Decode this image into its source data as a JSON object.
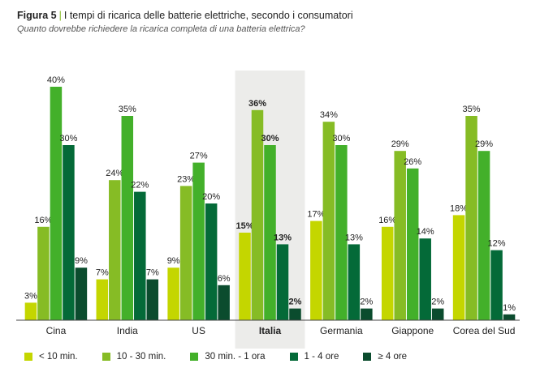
{
  "header": {
    "figure_label": "Figura 5",
    "title": "I tempi di ricarica delle batterie elettriche, secondo i consumatori",
    "subtitle": "Quanto dovrebbe richiedere la ricarica completa di una batteria elettrica?"
  },
  "chart_data": {
    "type": "bar",
    "categories": [
      "Cina",
      "India",
      "US",
      "Italia",
      "Germania",
      "Giappone",
      "Corea del Sud"
    ],
    "highlighted_category": "Italia",
    "series": [
      {
        "name": "< 10 min.",
        "color": "#c4d600",
        "values": [
          3,
          7,
          9,
          15,
          17,
          16,
          18
        ]
      },
      {
        "name": "10 - 30 min.",
        "color": "#86bc25",
        "values": [
          16,
          24,
          23,
          36,
          34,
          29,
          35
        ]
      },
      {
        "name": "30 min. - 1 ora",
        "color": "#43b02a",
        "values": [
          40,
          35,
          27,
          30,
          30,
          26,
          29
        ]
      },
      {
        "name": "1 - 4 ore",
        "color": "#046a38",
        "values": [
          30,
          22,
          20,
          13,
          13,
          14,
          12
        ]
      },
      {
        "name": "≥ 4 ore",
        "color": "#0b4c2e",
        "values": [
          9,
          7,
          6,
          2,
          2,
          2,
          1
        ]
      }
    ],
    "value_suffix": "%",
    "ylim": [
      0,
      45
    ],
    "grid": false,
    "legend_position": "bottom",
    "xlabel": "",
    "ylabel": ""
  }
}
